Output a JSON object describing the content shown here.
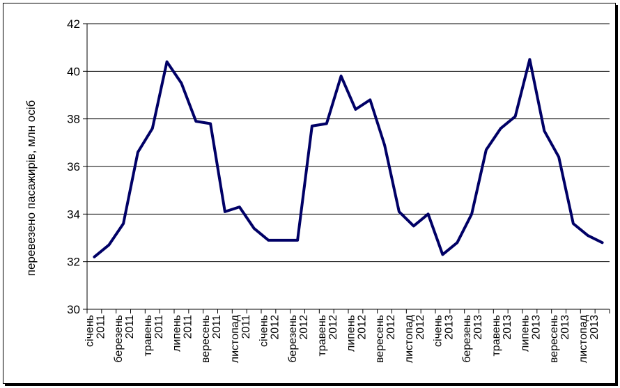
{
  "chart_data": {
    "type": "line",
    "title": "",
    "xlabel": "",
    "ylabel": "перевезено пасажирів, млн осіб",
    "ylim": [
      30,
      42
    ],
    "yticks": [
      "30",
      "32",
      "34",
      "36",
      "38",
      "40",
      "42"
    ],
    "grid": "horizontal",
    "legend": "none",
    "line_color": "#000066",
    "tick_labels": [
      {
        "month": "січень",
        "year": "2011"
      },
      {
        "month": "березень",
        "year": "2011"
      },
      {
        "month": "травень",
        "year": "2011"
      },
      {
        "month": "липень",
        "year": "2011"
      },
      {
        "month": "вересень",
        "year": "2011"
      },
      {
        "month": "листопад",
        "year": "2011"
      },
      {
        "month": "січень",
        "year": "2012"
      },
      {
        "month": "березень",
        "year": "2012"
      },
      {
        "month": "травень",
        "year": "2012"
      },
      {
        "month": "липень",
        "year": "2012"
      },
      {
        "month": "вересень",
        "year": "2012"
      },
      {
        "month": "листопад",
        "year": "2012"
      },
      {
        "month": "січень",
        "year": "2013"
      },
      {
        "month": "березень",
        "year": "2013"
      },
      {
        "month": "травень",
        "year": "2013"
      },
      {
        "month": "липень",
        "year": "2013"
      },
      {
        "month": "вересень",
        "year": "2013"
      },
      {
        "month": "листопад",
        "year": "2013"
      }
    ],
    "series": [
      {
        "values": [
          32.2,
          32.7,
          33.6,
          36.6,
          37.6,
          40.4,
          39.5,
          37.9,
          37.8,
          34.1,
          34.3,
          33.4,
          32.9,
          32.9,
          32.9,
          37.7,
          37.8,
          39.8,
          38.4,
          38.8,
          36.9,
          34.1,
          33.5,
          34.0,
          32.3,
          32.8,
          34.0,
          36.7,
          37.6,
          38.1,
          40.5,
          37.5,
          36.4,
          33.6,
          33.1,
          32.8
        ]
      }
    ]
  }
}
